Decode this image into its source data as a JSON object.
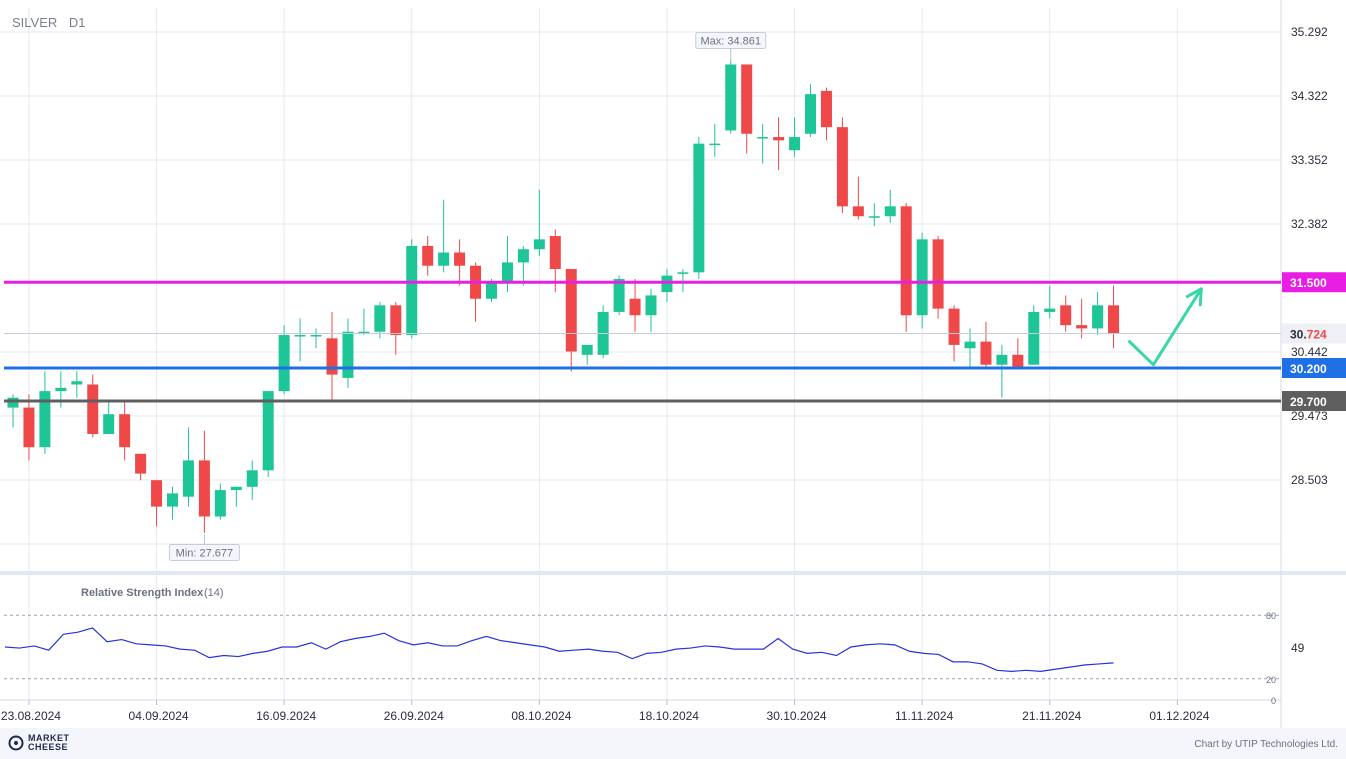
{
  "header": {
    "symbol": "SILVER",
    "timeframe": "D1"
  },
  "footer": {
    "brand_line1": "MARKET",
    "brand_line2": "CHEESE",
    "credit": "Chart by UTIP Technologies Ltd."
  },
  "chart_data": {
    "type": "candlestick",
    "symbol": "SILVER",
    "timeframe": "D1",
    "price_axis": {
      "ticks": [
        "35.292",
        "34.322",
        "33.352",
        "32.382",
        "30.442",
        "29.473",
        "28.503"
      ],
      "range": [
        27.2,
        35.6
      ]
    },
    "date_axis": {
      "ticks": [
        "23.08.2024",
        "04.09.2024",
        "16.09.2024",
        "26.09.2024",
        "08.10.2024",
        "18.10.2024",
        "30.10.2024",
        "11.11.2024",
        "21.11.2024",
        "01.12.2024"
      ]
    },
    "candles": [
      {
        "o": 29.6,
        "h": 29.8,
        "l": 29.3,
        "c": 29.75
      },
      {
        "o": 29.6,
        "h": 29.8,
        "l": 28.8,
        "c": 29.0
      },
      {
        "o": 29.0,
        "h": 30.15,
        "l": 28.9,
        "c": 29.85
      },
      {
        "o": 29.85,
        "h": 30.15,
        "l": 29.6,
        "c": 29.9
      },
      {
        "o": 29.95,
        "h": 30.15,
        "l": 29.75,
        "c": 30.0
      },
      {
        "o": 29.95,
        "h": 30.1,
        "l": 29.15,
        "c": 29.2
      },
      {
        "o": 29.2,
        "h": 29.7,
        "l": 29.2,
        "c": 29.5
      },
      {
        "o": 29.5,
        "h": 29.7,
        "l": 28.8,
        "c": 29.0
      },
      {
        "o": 28.9,
        "h": 28.9,
        "l": 28.5,
        "c": 28.6
      },
      {
        "o": 28.5,
        "h": 28.5,
        "l": 27.8,
        "c": 28.1
      },
      {
        "o": 28.1,
        "h": 28.4,
        "l": 27.9,
        "c": 28.3
      },
      {
        "o": 28.25,
        "h": 29.3,
        "l": 28.1,
        "c": 28.8
      },
      {
        "o": 28.8,
        "h": 29.25,
        "l": 27.7,
        "c": 27.95
      },
      {
        "o": 27.95,
        "h": 28.45,
        "l": 27.9,
        "c": 28.35
      },
      {
        "o": 28.35,
        "h": 28.4,
        "l": 28.1,
        "c": 28.4
      },
      {
        "o": 28.4,
        "h": 28.8,
        "l": 28.2,
        "c": 28.65
      },
      {
        "o": 28.65,
        "h": 29.85,
        "l": 28.55,
        "c": 29.85
      },
      {
        "o": 29.85,
        "h": 30.85,
        "l": 29.8,
        "c": 30.7
      },
      {
        "o": 30.7,
        "h": 30.95,
        "l": 30.3,
        "c": 30.7
      },
      {
        "o": 30.7,
        "h": 30.8,
        "l": 30.5,
        "c": 30.7
      },
      {
        "o": 30.65,
        "h": 31.05,
        "l": 29.7,
        "c": 30.1
      },
      {
        "o": 30.05,
        "h": 30.95,
        "l": 29.9,
        "c": 30.75
      },
      {
        "o": 30.75,
        "h": 31.1,
        "l": 30.7,
        "c": 30.75
      },
      {
        "o": 30.75,
        "h": 31.2,
        "l": 30.65,
        "c": 31.15
      },
      {
        "o": 31.15,
        "h": 31.2,
        "l": 30.4,
        "c": 30.7
      },
      {
        "o": 30.7,
        "h": 32.15,
        "l": 30.65,
        "c": 32.05
      },
      {
        "o": 32.05,
        "h": 32.2,
        "l": 31.6,
        "c": 31.75
      },
      {
        "o": 31.75,
        "h": 32.75,
        "l": 31.65,
        "c": 31.95
      },
      {
        "o": 31.95,
        "h": 32.15,
        "l": 31.45,
        "c": 31.75
      },
      {
        "o": 31.75,
        "h": 31.8,
        "l": 30.9,
        "c": 31.25
      },
      {
        "o": 31.25,
        "h": 31.55,
        "l": 31.2,
        "c": 31.5
      },
      {
        "o": 31.5,
        "h": 32.2,
        "l": 31.35,
        "c": 31.8
      },
      {
        "o": 31.8,
        "h": 32.05,
        "l": 31.45,
        "c": 32.0
      },
      {
        "o": 32.0,
        "h": 32.9,
        "l": 31.9,
        "c": 32.15
      },
      {
        "o": 32.2,
        "h": 32.3,
        "l": 31.35,
        "c": 31.7
      },
      {
        "o": 31.7,
        "h": 31.7,
        "l": 30.15,
        "c": 30.45
      },
      {
        "o": 30.4,
        "h": 30.55,
        "l": 30.25,
        "c": 30.55
      },
      {
        "o": 30.4,
        "h": 31.15,
        "l": 30.35,
        "c": 31.05
      },
      {
        "o": 31.05,
        "h": 31.6,
        "l": 31.0,
        "c": 31.55
      },
      {
        "o": 31.25,
        "h": 31.55,
        "l": 30.75,
        "c": 31.0
      },
      {
        "o": 31.0,
        "h": 31.4,
        "l": 30.75,
        "c": 31.3
      },
      {
        "o": 31.35,
        "h": 31.7,
        "l": 31.2,
        "c": 31.6
      },
      {
        "o": 31.65,
        "h": 31.7,
        "l": 31.35,
        "c": 31.65
      },
      {
        "o": 31.65,
        "h": 33.7,
        "l": 31.55,
        "c": 33.6
      },
      {
        "o": 33.6,
        "h": 33.9,
        "l": 33.4,
        "c": 33.6
      },
      {
        "o": 33.8,
        "h": 34.86,
        "l": 33.75,
        "c": 34.8
      },
      {
        "o": 34.8,
        "h": 34.8,
        "l": 33.45,
        "c": 33.75
      },
      {
        "o": 33.7,
        "h": 33.9,
        "l": 33.3,
        "c": 33.7
      },
      {
        "o": 33.7,
        "h": 34.0,
        "l": 33.2,
        "c": 33.65
      },
      {
        "o": 33.5,
        "h": 34.0,
        "l": 33.4,
        "c": 33.7
      },
      {
        "o": 33.75,
        "h": 34.5,
        "l": 33.7,
        "c": 34.35
      },
      {
        "o": 34.4,
        "h": 34.45,
        "l": 33.65,
        "c": 33.85
      },
      {
        "o": 33.85,
        "h": 34.0,
        "l": 32.55,
        "c": 32.65
      },
      {
        "o": 32.65,
        "h": 33.1,
        "l": 32.45,
        "c": 32.5
      },
      {
        "o": 32.5,
        "h": 32.7,
        "l": 32.35,
        "c": 32.5
      },
      {
        "o": 32.5,
        "h": 32.9,
        "l": 32.4,
        "c": 32.65
      },
      {
        "o": 32.65,
        "h": 32.7,
        "l": 30.75,
        "c": 31.0
      },
      {
        "o": 31.0,
        "h": 32.25,
        "l": 30.8,
        "c": 32.15
      },
      {
        "o": 32.15,
        "h": 32.2,
        "l": 30.95,
        "c": 31.1
      },
      {
        "o": 31.1,
        "h": 31.15,
        "l": 30.3,
        "c": 30.55
      },
      {
        "o": 30.5,
        "h": 30.8,
        "l": 30.2,
        "c": 30.6
      },
      {
        "o": 30.6,
        "h": 30.9,
        "l": 30.2,
        "c": 30.25
      },
      {
        "o": 30.25,
        "h": 30.55,
        "l": 29.75,
        "c": 30.4
      },
      {
        "o": 30.4,
        "h": 30.65,
        "l": 30.2,
        "c": 30.2
      },
      {
        "o": 30.25,
        "h": 31.15,
        "l": 30.25,
        "c": 31.05
      },
      {
        "o": 31.05,
        "h": 31.45,
        "l": 30.95,
        "c": 31.1
      },
      {
        "o": 31.15,
        "h": 31.3,
        "l": 30.75,
        "c": 30.85
      },
      {
        "o": 30.85,
        "h": 31.25,
        "l": 30.65,
        "c": 30.8
      },
      {
        "o": 30.8,
        "h": 31.35,
        "l": 30.7,
        "c": 31.15
      },
      {
        "o": 31.15,
        "h": 31.45,
        "l": 30.5,
        "c": 30.72
      }
    ],
    "levels": [
      {
        "label": "31.500",
        "value": 31.5,
        "color": "#e91ee5"
      },
      {
        "label": "30.200",
        "value": 30.2,
        "color": "#1f6fe5"
      },
      {
        "label": "29.700",
        "value": 29.7,
        "color": "#5f5f5f"
      }
    ],
    "current_price": {
      "label_main": "30.",
      "label_accent": "724",
      "value": 30.724
    },
    "max_annotation": {
      "label": "Max: 34.861",
      "value": 34.861,
      "candle_index": 45
    },
    "min_annotation": {
      "label": "Min: 27.677",
      "value": 27.677,
      "candle_index": 12
    },
    "projection": {
      "color": "#3bd6a8",
      "points": [
        [
          70,
          30.6
        ],
        [
          71.5,
          30.25
        ],
        [
          74.5,
          31.4
        ]
      ]
    },
    "rsi": {
      "title": "Relative Strength Index",
      "period": "(14)",
      "ticks": [
        "80",
        "49",
        "20",
        "0"
      ],
      "range": [
        0,
        100
      ],
      "values": [
        50,
        49,
        51,
        47,
        62,
        64,
        68,
        55,
        57,
        53,
        52,
        51,
        48,
        47,
        40,
        42,
        41,
        44,
        46,
        50,
        50,
        54,
        48,
        55,
        58,
        60,
        63,
        56,
        52,
        54,
        51,
        51,
        56,
        60,
        56,
        54,
        52,
        50,
        46,
        47,
        48,
        46,
        45,
        39,
        44,
        45,
        48,
        49,
        51,
        50,
        48,
        48,
        48,
        58,
        48,
        44,
        45,
        42,
        50,
        52,
        53,
        52,
        46,
        44,
        43,
        36,
        36,
        34,
        28,
        27,
        28,
        27,
        29,
        31,
        33,
        34,
        35
      ]
    },
    "colors": {
      "up": "#1ec596",
      "down": "#ef4848",
      "rsi_line": "#2734d6",
      "grid": "#e6e9f2"
    }
  }
}
